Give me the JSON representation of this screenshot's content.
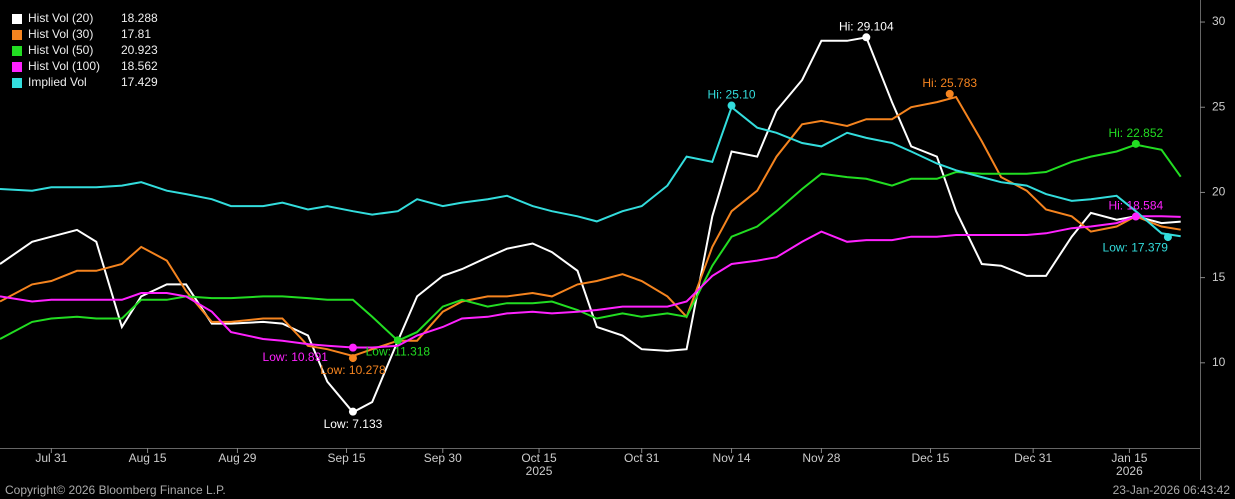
{
  "chart_data": {
    "type": "line",
    "x": [
      "2025-07-23",
      "2025-07-28",
      "2025-07-31",
      "2025-08-04",
      "2025-08-07",
      "2025-08-11",
      "2025-08-14",
      "2025-08-18",
      "2025-08-21",
      "2025-08-25",
      "2025-08-28",
      "2025-09-02",
      "2025-09-05",
      "2025-09-09",
      "2025-09-12",
      "2025-09-16",
      "2025-09-19",
      "2025-09-23",
      "2025-09-26",
      "2025-09-30",
      "2025-10-03",
      "2025-10-07",
      "2025-10-10",
      "2025-10-14",
      "2025-10-17",
      "2025-10-21",
      "2025-10-24",
      "2025-10-28",
      "2025-10-31",
      "2025-11-04",
      "2025-11-07",
      "2025-11-11",
      "2025-11-14",
      "2025-11-18",
      "2025-11-21",
      "2025-11-25",
      "2025-11-28",
      "2025-12-02",
      "2025-12-05",
      "2025-12-09",
      "2025-12-12",
      "2025-12-16",
      "2025-12-19",
      "2025-12-23",
      "2025-12-26",
      "2025-12-30",
      "2026-01-02",
      "2026-01-06",
      "2026-01-09",
      "2026-01-13",
      "2026-01-16",
      "2026-01-20",
      "2026-01-23"
    ],
    "series": [
      {
        "name": "Hist Vol (20)",
        "color": "#ffffff",
        "last": 18.288,
        "values": [
          15.8,
          17.1,
          17.4,
          17.8,
          17.1,
          12.1,
          13.9,
          14.6,
          14.6,
          12.3,
          12.3,
          12.4,
          12.3,
          11.6,
          8.9,
          7.1,
          7.7,
          11.3,
          13.9,
          15.1,
          15.5,
          16.2,
          16.7,
          17.0,
          16.5,
          15.4,
          12.1,
          11.6,
          10.8,
          10.7,
          10.8,
          18.6,
          22.4,
          22.1,
          24.8,
          26.6,
          28.9,
          28.9,
          29.1,
          25.3,
          22.7,
          22.1,
          18.9,
          15.8,
          15.7,
          15.1,
          15.1,
          17.4,
          18.8,
          18.4,
          18.6,
          18.2,
          18.288
        ]
      },
      {
        "name": "Hist Vol (30)",
        "color": "#f5841f",
        "last": 17.81,
        "values": [
          13.6,
          14.6,
          14.8,
          15.4,
          15.4,
          15.8,
          16.8,
          16.0,
          14.2,
          12.4,
          12.4,
          12.6,
          12.6,
          11.0,
          10.8,
          10.4,
          10.8,
          11.3,
          11.3,
          13.0,
          13.6,
          13.9,
          13.9,
          14.1,
          13.9,
          14.6,
          14.8,
          15.2,
          14.8,
          13.9,
          12.7,
          16.8,
          18.9,
          20.1,
          22.1,
          24.0,
          24.2,
          23.9,
          24.3,
          24.3,
          25.0,
          25.3,
          25.6,
          23.0,
          20.9,
          20.1,
          19.0,
          18.6,
          17.7,
          18.0,
          18.6,
          18.0,
          17.81
        ]
      },
      {
        "name": "Hist Vol (50)",
        "color": "#22dd22",
        "last": 20.923,
        "values": [
          11.4,
          12.4,
          12.6,
          12.7,
          12.6,
          12.6,
          13.7,
          13.7,
          13.9,
          13.8,
          13.8,
          13.9,
          13.9,
          13.8,
          13.7,
          13.7,
          12.7,
          11.3,
          11.8,
          13.3,
          13.7,
          13.3,
          13.5,
          13.5,
          13.6,
          13.1,
          12.6,
          12.9,
          12.7,
          12.9,
          12.7,
          15.7,
          17.4,
          18.0,
          18.9,
          20.2,
          21.1,
          20.9,
          20.8,
          20.4,
          20.8,
          20.8,
          21.2,
          21.1,
          21.1,
          21.1,
          21.2,
          21.8,
          22.1,
          22.4,
          22.8,
          22.5,
          20.923
        ]
      },
      {
        "name": "Hist Vol (100)",
        "color": "#ff22ff",
        "last": 18.562,
        "values": [
          13.9,
          13.6,
          13.7,
          13.7,
          13.7,
          13.7,
          14.1,
          14.1,
          13.9,
          13.0,
          11.8,
          11.4,
          11.3,
          11.1,
          11.0,
          10.9,
          10.9,
          11.0,
          11.6,
          12.1,
          12.6,
          12.7,
          12.9,
          13.0,
          12.9,
          13.0,
          13.1,
          13.3,
          13.3,
          13.3,
          13.6,
          15.1,
          15.8,
          16.0,
          16.2,
          17.1,
          17.7,
          17.1,
          17.2,
          17.2,
          17.4,
          17.4,
          17.5,
          17.5,
          17.5,
          17.5,
          17.6,
          17.9,
          18.0,
          18.2,
          18.6,
          18.6,
          18.562
        ]
      },
      {
        "name": "Implied Vol",
        "color": "#33dddd",
        "last": 17.429,
        "values": [
          20.2,
          20.1,
          20.3,
          20.3,
          20.3,
          20.4,
          20.6,
          20.1,
          19.9,
          19.6,
          19.2,
          19.2,
          19.4,
          19.0,
          19.2,
          18.9,
          18.7,
          18.9,
          19.6,
          19.2,
          19.4,
          19.6,
          19.8,
          19.2,
          18.9,
          18.6,
          18.3,
          18.9,
          19.2,
          20.4,
          22.1,
          21.8,
          25.0,
          23.8,
          23.5,
          22.9,
          22.7,
          23.5,
          23.2,
          22.9,
          22.4,
          21.7,
          21.3,
          20.9,
          20.6,
          20.4,
          19.9,
          19.5,
          19.6,
          19.8,
          18.9,
          17.6,
          17.429
        ]
      }
    ],
    "xlim": [
      "2025-07-23",
      "2026-01-26"
    ],
    "ylim": [
      5,
      31
    ],
    "yticks": [
      10,
      15,
      20,
      25,
      30
    ],
    "xticks": [
      {
        "value": "2025-07-31",
        "label": "Jul 31"
      },
      {
        "value": "2025-08-15",
        "label": "Aug 15"
      },
      {
        "value": "2025-08-29",
        "label": "Aug 29"
      },
      {
        "value": "2025-09-15",
        "label": "Sep 15"
      },
      {
        "value": "2025-09-30",
        "label": "Sep 30"
      },
      {
        "value": "2025-10-15",
        "label": "Oct 15"
      },
      {
        "value": "2025-10-31",
        "label": "Oct 31"
      },
      {
        "value": "2025-11-14",
        "label": "Nov 14"
      },
      {
        "value": "2025-11-28",
        "label": "Nov 28"
      },
      {
        "value": "2025-12-15",
        "label": "Dec 15"
      },
      {
        "value": "2025-12-31",
        "label": "Dec 31"
      },
      {
        "value": "2026-01-15",
        "label": "Jan 15"
      }
    ],
    "year_labels": [
      {
        "value": "2025-10-15",
        "label": "2025"
      },
      {
        "value": "2026-01-15",
        "label": "2026"
      }
    ],
    "annotations": [
      {
        "series": 0,
        "label": "Hi: 29.104",
        "x": "2025-12-05",
        "value": 29.104
      },
      {
        "series": 0,
        "label": "Low: 7.133",
        "x": "2025-09-16",
        "value": 7.133
      },
      {
        "series": 1,
        "label": "Hi: 25.783",
        "x": "2025-12-18",
        "value": 25.783
      },
      {
        "series": 1,
        "label": "Low: 10.278",
        "x": "2025-09-16",
        "value": 10.278
      },
      {
        "series": 2,
        "label": "Hi: 22.852",
        "x": "2026-01-16",
        "value": 22.852
      },
      {
        "series": 2,
        "label": "Low: 11.318",
        "x": "2025-09-23",
        "value": 11.318
      },
      {
        "series": 3,
        "label": "Hi: 18.584",
        "x": "2026-01-16",
        "value": 18.584
      },
      {
        "series": 3,
        "label": "Low: 10.891",
        "x": "2025-09-16",
        "value": 10.891
      },
      {
        "series": 4,
        "label": "Hi: 25.10",
        "x": "2025-11-14",
        "value": 25.1
      },
      {
        "series": 4,
        "label": "Low: 17.379",
        "x": "2026-01-21",
        "value": 17.379
      }
    ],
    "legend": "upper left"
  },
  "footer": {
    "copyright": "Copyright© 2026 Bloomberg Finance L.P.",
    "timestamp": "23-Jan-2026 06:43:42"
  }
}
